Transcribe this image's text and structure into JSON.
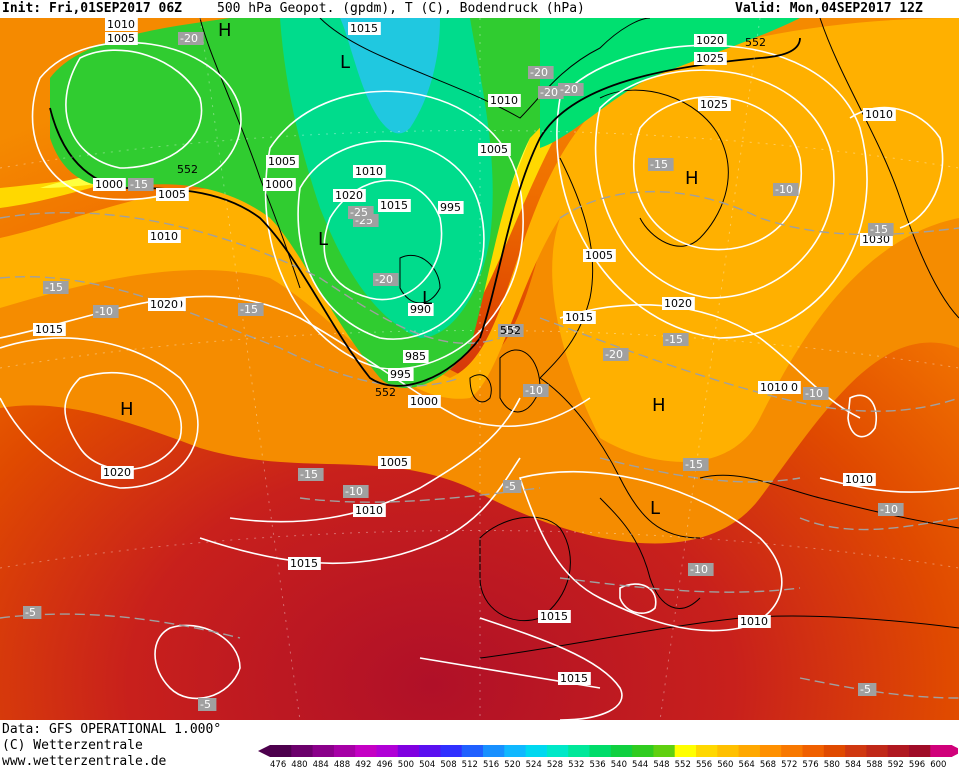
{
  "header": {
    "init": "Init: Fri,01SEP2017 06Z",
    "title": "500 hPa Geopot. (gpdm), T (C), Bodendruck (hPa)",
    "valid": "Valid: Mon,04SEP2017 12Z"
  },
  "footer": {
    "data_line": "Data: GFS OPERATIONAL 1.000°",
    "copyright": "(C) Wetterzentrale",
    "url": "www.wetterzentrale.de"
  },
  "legend": {
    "values": [
      "476",
      "480",
      "484",
      "488",
      "492",
      "496",
      "500",
      "504",
      "508",
      "512",
      "516",
      "520",
      "524",
      "528",
      "532",
      "536",
      "540",
      "544",
      "548",
      "552",
      "556",
      "560",
      "564",
      "568",
      "572",
      "576",
      "580",
      "584",
      "588",
      "592",
      "596",
      "600"
    ],
    "colors": [
      "#4d004d",
      "#6b006b",
      "#8a008a",
      "#a600a6",
      "#c400c4",
      "#b000d6",
      "#8000e0",
      "#5a10f0",
      "#3030ff",
      "#2060ff",
      "#1890ff",
      "#10b8ff",
      "#00d8f0",
      "#00e8c8",
      "#00e89a",
      "#00dc6a",
      "#10d040",
      "#30cc20",
      "#60d010",
      "#ffff00",
      "#ffd800",
      "#ffc000",
      "#ffa800",
      "#ff9000",
      "#f87800",
      "#f06000",
      "#e04a00",
      "#d03810",
      "#c02818",
      "#b01820",
      "#a00c28",
      "#d0007a"
    ]
  },
  "map_labels": {
    "pressure": [
      "1010",
      "1005",
      "1000",
      "1005",
      "1010",
      "1020",
      "1015",
      "1015",
      "1010",
      "1005",
      "1000",
      "1005",
      "1010",
      "1020",
      "1015",
      "995",
      "990",
      "985",
      "995",
      "1000",
      "1005",
      "1010",
      "1015",
      "1020",
      "1025",
      "1020",
      "1025",
      "1030",
      "1010",
      "1005",
      "1020",
      "1015",
      "1010",
      "1010",
      "1015",
      "1010",
      "1015",
      "1010",
      "1020"
    ],
    "temperature": [
      "-20",
      "-15",
      "-15",
      "-10",
      "-15",
      "-25",
      "-20",
      "-25",
      "-20",
      "-15",
      "-10",
      "-15",
      "-20",
      "-15",
      "-20",
      "-10",
      "-15",
      "-10",
      "-10",
      "-5",
      "-15",
      "-10",
      "-5",
      "-10",
      "-5",
      "-5",
      "-15",
      "-20"
    ],
    "geopotential": [
      "552",
      "552",
      "552",
      "552"
    ],
    "centers": [
      "H",
      "L",
      "L",
      "L",
      "H",
      "H",
      "H",
      "L"
    ]
  }
}
